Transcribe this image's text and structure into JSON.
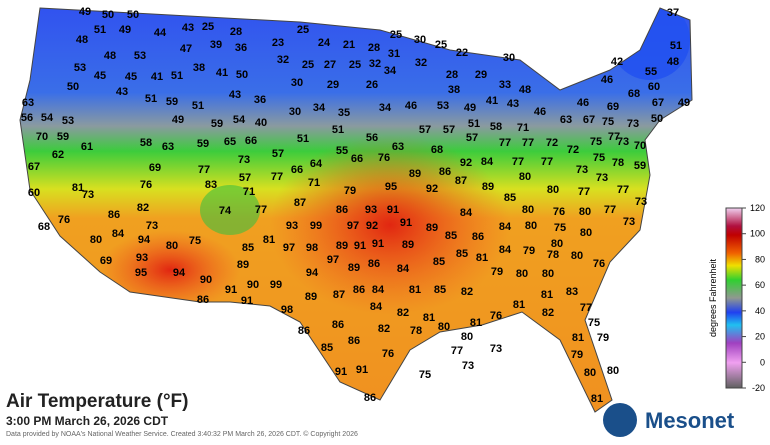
{
  "title": "Air Temperature (°F)",
  "timestamp": "3:00 PM March 26, 2026 CDT",
  "credit": "Data provided by NOAA's National Weather Service. Created 3:40:32 PM March 26, 2026 CDT. © Copyright 2026",
  "logo": "Mesonet",
  "colorbar": {
    "label": "degrees Fahrenheit",
    "lim": [
      -20,
      120
    ],
    "ticks": [
      120,
      100,
      80,
      60,
      40,
      20,
      0,
      -20
    ]
  },
  "stations": [
    49,
    50,
    50,
    48,
    51,
    49,
    44,
    43,
    25,
    28,
    25,
    25,
    30,
    25,
    22,
    30,
    37,
    51,
    48,
    42,
    53,
    48,
    53,
    47,
    39,
    36,
    23,
    24,
    21,
    28,
    31,
    32,
    25,
    27,
    25,
    32,
    32,
    45,
    45,
    41,
    51,
    38,
    41,
    50,
    30,
    29,
    26,
    34,
    28,
    29,
    48,
    33,
    55,
    46,
    60,
    50,
    43,
    51,
    59,
    51,
    43,
    36,
    30,
    34,
    35,
    34,
    46,
    53,
    38,
    41,
    43,
    46,
    68,
    49,
    67,
    46,
    69,
    63,
    56,
    54,
    53,
    49,
    59,
    54,
    40,
    51,
    51,
    56,
    57,
    57,
    49,
    51,
    58,
    71,
    63,
    67,
    75,
    73,
    50,
    77,
    70,
    59,
    62,
    61,
    58,
    63,
    59,
    65,
    66,
    57,
    55,
    63,
    68,
    57,
    77,
    77,
    72,
    72,
    75,
    73,
    70,
    67,
    69,
    73,
    64,
    66,
    66,
    76,
    92,
    84,
    86,
    77,
    77,
    75,
    78,
    59,
    81,
    76,
    77,
    83,
    57,
    77,
    71,
    79,
    95,
    89,
    92,
    87,
    89,
    80,
    73,
    73,
    77,
    60,
    73,
    71,
    85,
    80,
    77,
    82,
    74,
    77,
    87,
    86,
    93,
    91,
    84,
    80,
    76,
    80,
    77,
    73,
    73,
    76,
    86,
    73,
    93,
    99,
    97,
    92,
    91,
    89,
    80,
    75,
    80,
    68,
    80,
    84,
    94,
    80,
    75,
    85,
    81,
    97,
    98,
    89,
    91,
    91,
    89,
    85,
    86,
    84,
    80,
    69,
    93,
    89,
    97,
    89,
    86,
    84,
    85,
    85,
    81,
    84,
    79,
    78,
    80,
    76,
    95,
    94,
    90,
    94,
    79,
    80,
    80,
    91,
    90,
    99,
    89,
    87,
    86,
    84,
    81,
    85,
    82,
    81,
    83,
    86,
    91,
    98,
    84,
    82,
    81,
    81,
    77,
    76,
    82,
    86,
    86,
    82,
    78,
    80,
    81,
    80,
    75,
    79,
    81,
    85,
    86,
    76,
    77,
    73,
    79,
    73,
    75,
    91,
    91,
    80,
    80,
    86,
    81
  ]
}
